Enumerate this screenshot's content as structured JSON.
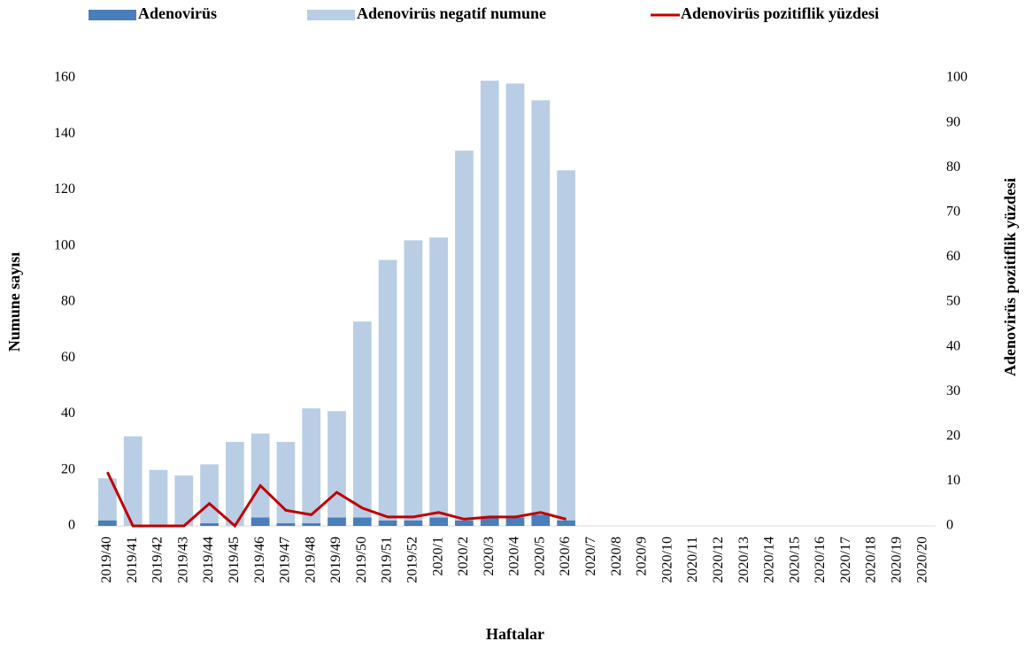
{
  "chart_data": {
    "type": "bar",
    "stacked": true,
    "xlabel": "Haftalar",
    "ylabel": "Numune sayısı",
    "y2label": "Adenovirüs pozitiflik yüzdesi",
    "categories": [
      "2019/40",
      "2019/41",
      "2019/42",
      "2019/43",
      "2019/44",
      "2019/45",
      "2019/46",
      "2019/47",
      "2019/48",
      "2019/49",
      "2019/50",
      "2019/51",
      "2019/52",
      "2020/1",
      "2020/2",
      "2020/3",
      "2020/4",
      "2020/5",
      "2020/6",
      "2020/7",
      "2020/8",
      "2020/9",
      "2020/10",
      "2020/11",
      "2020/12",
      "2020/13",
      "2020/14",
      "2020/15",
      "2020/16",
      "2020/17",
      "2020/18",
      "2020/19",
      "2020/20"
    ],
    "series": [
      {
        "name": "Adenovirüs",
        "type": "bar",
        "color": "#4a7ebb",
        "values": [
          2,
          0,
          0,
          0,
          1,
          0,
          3,
          1,
          1,
          3,
          3,
          2,
          2,
          3,
          2,
          3,
          3,
          4,
          2,
          null,
          null,
          null,
          null,
          null,
          null,
          null,
          null,
          null,
          null,
          null,
          null,
          null,
          null
        ]
      },
      {
        "name": "Adenovirüs negatif numune",
        "type": "bar",
        "color": "#b9cde5",
        "values": [
          15,
          32,
          20,
          18,
          21,
          30,
          30,
          29,
          41,
          38,
          70,
          93,
          100,
          100,
          132,
          156,
          155,
          148,
          125,
          null,
          null,
          null,
          null,
          null,
          null,
          null,
          null,
          null,
          null,
          null,
          null,
          null,
          null
        ]
      },
      {
        "name": "Adenovirüs pozitiflik yüzdesi",
        "type": "line",
        "axis": "y2",
        "color": "#c00000",
        "values": [
          12,
          0,
          0,
          0,
          5,
          0,
          9,
          3.5,
          2.5,
          7.5,
          4,
          2,
          2,
          3,
          1.5,
          2,
          2,
          3,
          1.5,
          null,
          null,
          null,
          null,
          null,
          null,
          null,
          null,
          null,
          null,
          null,
          null,
          null,
          null
        ]
      }
    ],
    "ylim": [
      0,
      160
    ],
    "yticks": [
      0,
      20,
      40,
      60,
      80,
      100,
      120,
      140,
      160
    ],
    "y2lim": [
      0,
      100
    ],
    "y2ticks": [
      0,
      10,
      20,
      30,
      40,
      50,
      60,
      70,
      80,
      90,
      100
    ],
    "grid": false
  }
}
